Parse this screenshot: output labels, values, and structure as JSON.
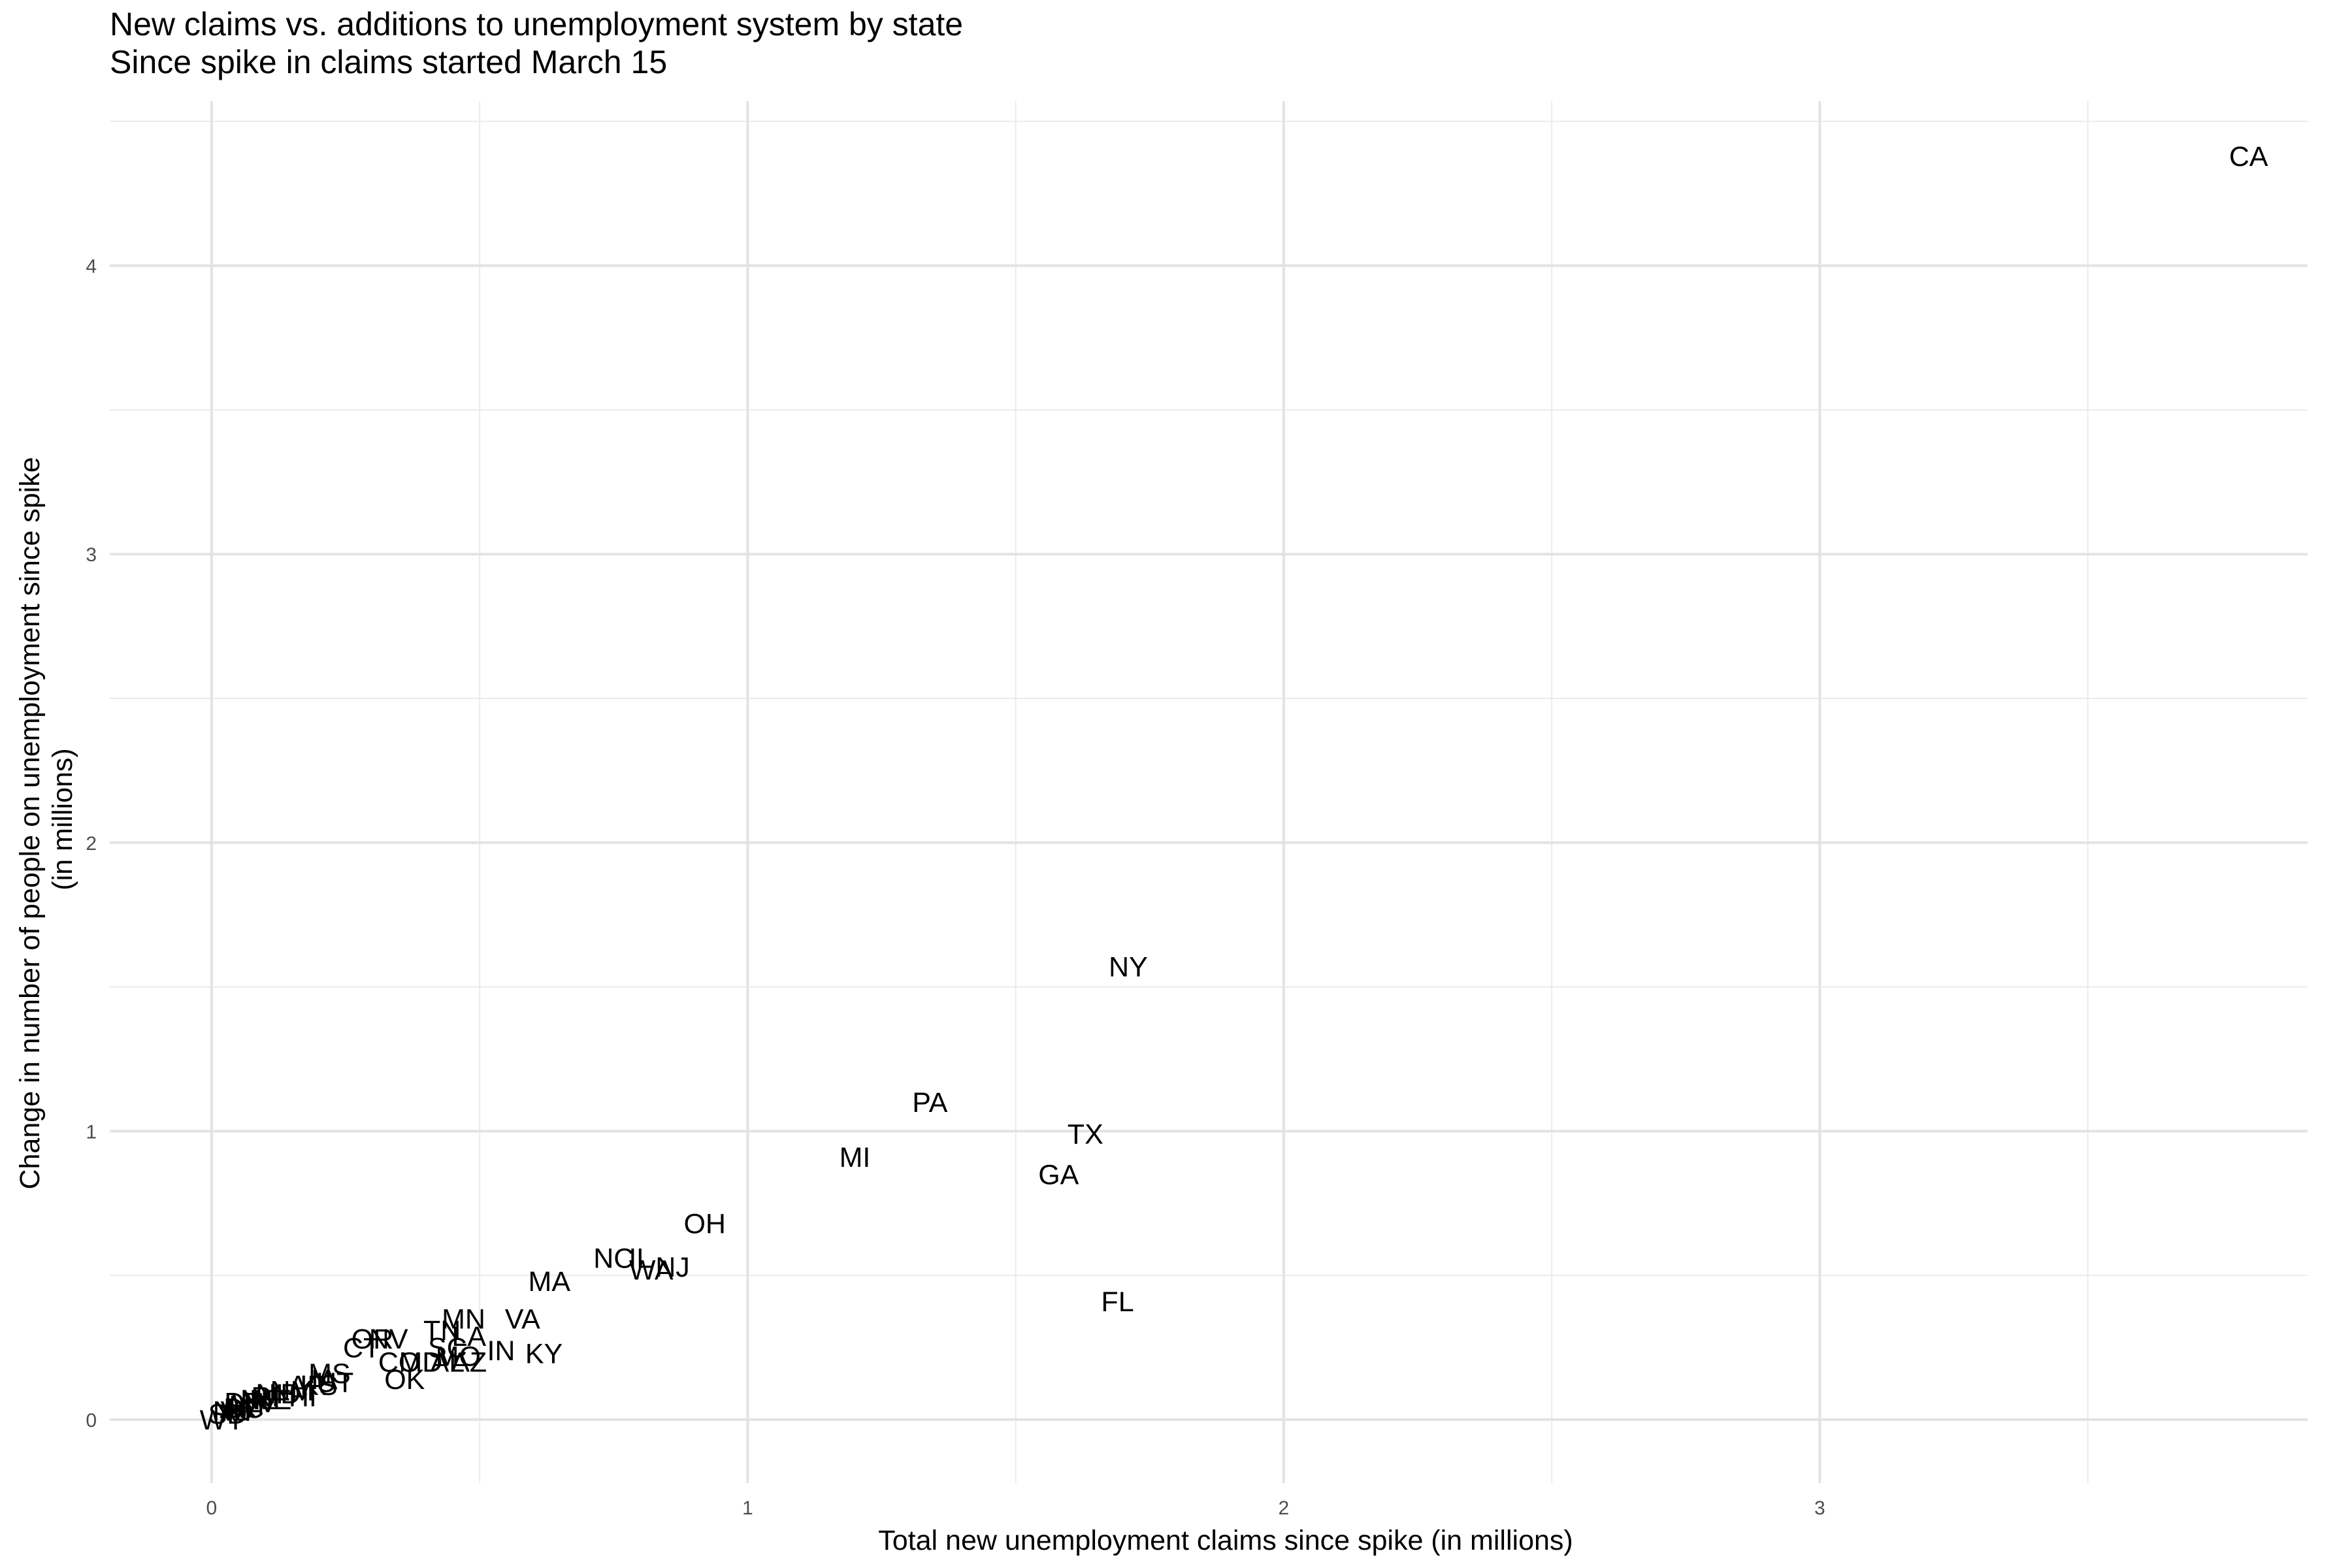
{
  "chart_data": {
    "type": "scatter",
    "title": "New claims vs. additions to unemployment system by state",
    "subtitle": "Since spike in claims started March 15",
    "xlabel": "Total new unemployment claims since spike (in millions)",
    "ylabel_lines": [
      "Change in number of people on unemployment since spike",
      "(in millions)"
    ],
    "xlim": [
      -0.19,
      3.91
    ],
    "ylim": [
      -0.22,
      4.57
    ],
    "xticks": [
      0,
      1,
      2,
      3
    ],
    "yticks": [
      0,
      1,
      2,
      3,
      4
    ],
    "grid": true,
    "point_style": "state-abbreviation text labels",
    "points": [
      {
        "label": "CA",
        "x": 3.8,
        "y": 4.38
      },
      {
        "label": "NY",
        "x": 1.71,
        "y": 1.57
      },
      {
        "label": "PA",
        "x": 1.34,
        "y": 1.1
      },
      {
        "label": "TX",
        "x": 1.63,
        "y": 0.99
      },
      {
        "label": "MI",
        "x": 1.2,
        "y": 0.91
      },
      {
        "label": "GA",
        "x": 1.58,
        "y": 0.85
      },
      {
        "label": "OH",
        "x": 0.92,
        "y": 0.68
      },
      {
        "label": "NC",
        "x": 0.75,
        "y": 0.56
      },
      {
        "label": "IL",
        "x": 0.8,
        "y": 0.56
      },
      {
        "label": "WA",
        "x": 0.82,
        "y": 0.52
      },
      {
        "label": "NJ",
        "x": 0.86,
        "y": 0.53
      },
      {
        "label": "MA",
        "x": 0.63,
        "y": 0.48
      },
      {
        "label": "FL",
        "x": 1.69,
        "y": 0.41
      },
      {
        "label": "MN",
        "x": 0.47,
        "y": 0.35
      },
      {
        "label": "VA",
        "x": 0.58,
        "y": 0.35
      },
      {
        "label": "TN",
        "x": 0.43,
        "y": 0.31
      },
      {
        "label": "LA",
        "x": 0.48,
        "y": 0.29
      },
      {
        "label": "NV",
        "x": 0.33,
        "y": 0.28
      },
      {
        "label": "OR",
        "x": 0.3,
        "y": 0.28
      },
      {
        "label": "CT",
        "x": 0.28,
        "y": 0.25
      },
      {
        "label": "SC",
        "x": 0.44,
        "y": 0.25
      },
      {
        "label": "IN",
        "x": 0.54,
        "y": 0.24
      },
      {
        "label": "KY",
        "x": 0.62,
        "y": 0.23
      },
      {
        "label": "MO",
        "x": 0.46,
        "y": 0.22
      },
      {
        "label": "CO",
        "x": 0.35,
        "y": 0.2
      },
      {
        "label": "MD",
        "x": 0.39,
        "y": 0.2
      },
      {
        "label": "AL",
        "x": 0.44,
        "y": 0.2
      },
      {
        "label": "AZ",
        "x": 0.48,
        "y": 0.2
      },
      {
        "label": "OK",
        "x": 0.36,
        "y": 0.14
      },
      {
        "label": "MS",
        "x": 0.22,
        "y": 0.16
      },
      {
        "label": "UT",
        "x": 0.23,
        "y": 0.13
      },
      {
        "label": "KS",
        "x": 0.2,
        "y": 0.12
      },
      {
        "label": "IA",
        "x": 0.21,
        "y": 0.14
      },
      {
        "label": "AR",
        "x": 0.18,
        "y": 0.12
      },
      {
        "label": "NM",
        "x": 0.15,
        "y": 0.1
      },
      {
        "label": "HI",
        "x": 0.17,
        "y": 0.08
      },
      {
        "label": "ID",
        "x": 0.14,
        "y": 0.09
      },
      {
        "label": "NH",
        "x": 0.12,
        "y": 0.09
      },
      {
        "label": "ME",
        "x": 0.11,
        "y": 0.07
      },
      {
        "label": "RI",
        "x": 0.1,
        "y": 0.08
      },
      {
        "label": "NE",
        "x": 0.09,
        "y": 0.07
      },
      {
        "label": "WV",
        "x": 0.08,
        "y": 0.06
      },
      {
        "label": "MT",
        "x": 0.07,
        "y": 0.05
      },
      {
        "label": "DE",
        "x": 0.06,
        "y": 0.06
      },
      {
        "label": "AK",
        "x": 0.05,
        "y": 0.04
      },
      {
        "label": "VT",
        "x": 0.05,
        "y": 0.03
      },
      {
        "label": "ND",
        "x": 0.04,
        "y": 0.03
      },
      {
        "label": "SD",
        "x": 0.03,
        "y": 0.02
      },
      {
        "label": "DC",
        "x": 0.06,
        "y": 0.04
      },
      {
        "label": "WY",
        "x": 0.02,
        "y": 0.0
      }
    ]
  }
}
